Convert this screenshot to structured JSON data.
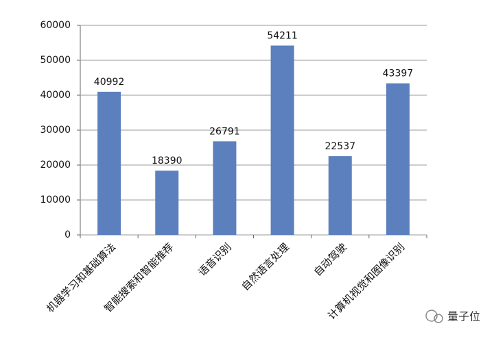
{
  "chart_data": {
    "type": "bar",
    "categories": [
      "机器学习和基础算法",
      "智能搜索和智能推荐",
      "语音识别",
      "自然语言处理",
      "自动驾驶",
      "计算机视觉和图像识别"
    ],
    "values": [
      40992,
      18390,
      26791,
      54211,
      22537,
      43397
    ],
    "color": "#5b80bd",
    "ylim": [
      0,
      60000
    ],
    "yticks": [
      0,
      10000,
      20000,
      30000,
      40000,
      50000,
      60000
    ],
    "grid": true
  },
  "watermark": "量子位"
}
